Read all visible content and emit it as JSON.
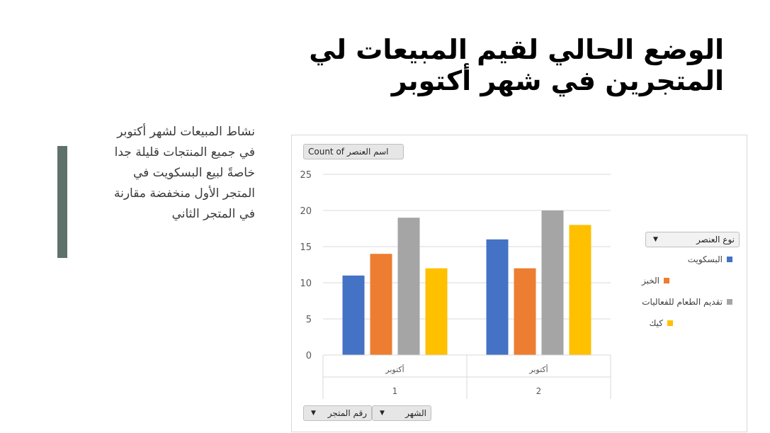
{
  "slide": {
    "title_line1": "الوضع الحالي لقيم المبيعات لي",
    "title_line2": "المتجرين في شهر أكتوبر",
    "body_lines": [
      "نشاط المبيعات لشهر أكتوبر",
      "في جميع المنتجات قليلة جدا",
      "خاصةً لبيع البسكويت في",
      "المتجر الأول منخفضة مقارنة",
      "في المتجر الثاني"
    ]
  },
  "pivot": {
    "value_field": "Count of اسم العنصر",
    "legend_field": "نوع العنصر",
    "row_field_store": "رقم المتجر",
    "row_field_month": "الشهر"
  },
  "chart_data": {
    "type": "bar",
    "categories": [
      {
        "month": "أكتوبر",
        "store": "1"
      },
      {
        "month": "أكتوبر",
        "store": "2"
      }
    ],
    "series": [
      {
        "name": "البسكويت",
        "color": "#4472c4",
        "values": [
          11,
          16
        ]
      },
      {
        "name": "الخبز",
        "color": "#ed7d31",
        "values": [
          14,
          12
        ]
      },
      {
        "name": "تقديم الطعام للفعاليات",
        "color": "#a5a5a5",
        "values": [
          19,
          20
        ]
      },
      {
        "name": "كيك",
        "color": "#ffc000",
        "values": [
          12,
          18
        ]
      }
    ],
    "y_ticks": [
      "0",
      "5",
      "10",
      "15",
      "20",
      "25"
    ],
    "ylim": [
      0,
      25
    ],
    "grid": true,
    "legend_position": "right"
  }
}
